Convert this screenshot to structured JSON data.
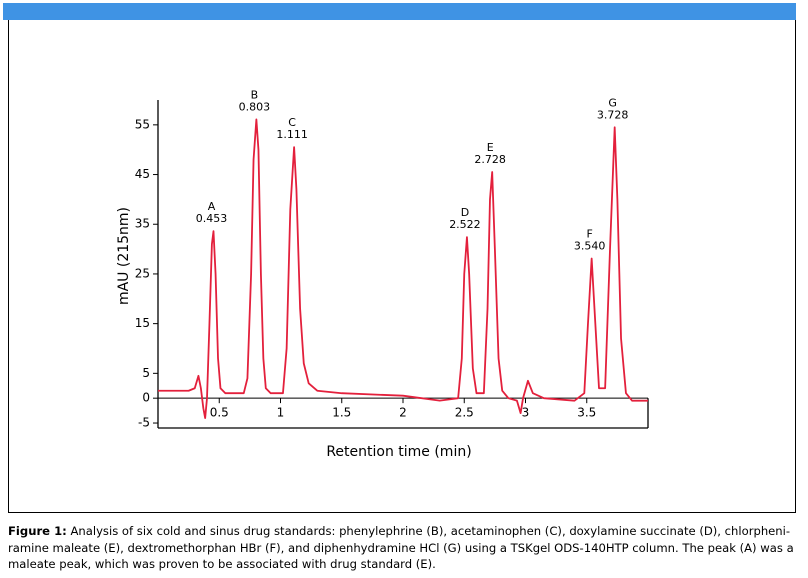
{
  "chart_data": {
    "type": "line",
    "ylabel": "mAU (215nm)",
    "xlabel": "Retention time (min)",
    "color": "#e3203c",
    "xlim": [
      0,
      4
    ],
    "ylim": [
      -6,
      60
    ],
    "xticks": [
      0.5,
      1,
      1.5,
      2,
      2.5,
      3,
      3.5
    ],
    "yticks": [
      55,
      45,
      35,
      25,
      15,
      5,
      0,
      -5
    ],
    "x": [
      0,
      0.25,
      0.3,
      0.33,
      0.35,
      0.37,
      0.385,
      0.4,
      0.42,
      0.44,
      0.453,
      0.47,
      0.49,
      0.51,
      0.55,
      0.7,
      0.73,
      0.76,
      0.78,
      0.803,
      0.82,
      0.84,
      0.86,
      0.88,
      0.92,
      1.02,
      1.05,
      1.08,
      1.111,
      1.13,
      1.16,
      1.19,
      1.23,
      1.3,
      1.5,
      2.0,
      2.3,
      2.45,
      2.48,
      2.5,
      2.522,
      2.54,
      2.57,
      2.6,
      2.66,
      2.69,
      2.71,
      2.728,
      2.75,
      2.78,
      2.81,
      2.86,
      2.93,
      2.96,
      2.98,
      3.02,
      3.06,
      3.15,
      3.4,
      3.48,
      3.51,
      3.54,
      3.57,
      3.6,
      3.65,
      3.69,
      3.728,
      3.75,
      3.78,
      3.82,
      3.87,
      4.0
    ],
    "values": [
      1.5,
      1.5,
      2,
      4.5,
      2,
      -2,
      -4,
      0,
      15,
      31,
      33.6,
      25,
      8,
      2,
      1,
      1,
      4,
      25,
      48,
      56.1,
      50,
      25,
      8,
      2,
      1,
      1,
      10,
      38,
      50.5,
      42,
      18,
      7,
      3,
      1.5,
      1,
      0.5,
      -0.5,
      0,
      8,
      25,
      32.4,
      25,
      6,
      1,
      1,
      18,
      40,
      45.5,
      30,
      8,
      1.5,
      0,
      -0.5,
      -3,
      0,
      3.5,
      1,
      0,
      -0.5,
      1,
      15,
      28.1,
      15,
      2,
      2,
      30,
      54.5,
      40,
      12,
      1,
      -0.5,
      -0.5
    ],
    "peaks": [
      {
        "name": "A",
        "time": 0.453
      },
      {
        "name": "B",
        "time": 0.803
      },
      {
        "name": "C",
        "time": 1.111
      },
      {
        "name": "D",
        "time": 2.522
      },
      {
        "name": "E",
        "time": 2.728
      },
      {
        "name": "F",
        "time": {
          "value": 3.54,
          "label": "3.540"
        }
      },
      {
        "name": "G",
        "time": 3.728
      }
    ]
  },
  "caption": {
    "label": "Figure 1:",
    "text": "Analysis of six cold and sinus drug standards: phenylephrine (B), acetaminophen (C), doxylamine succinate (D), chlorpheni­ramine maleate (E), dextromethorphan HBr (F), and diphenhydramine HCl (G) using a TSKgel ODS-140HTP column. The peak (A) was a maleate peak, which was proven to be associated with drug standard (E)."
  }
}
